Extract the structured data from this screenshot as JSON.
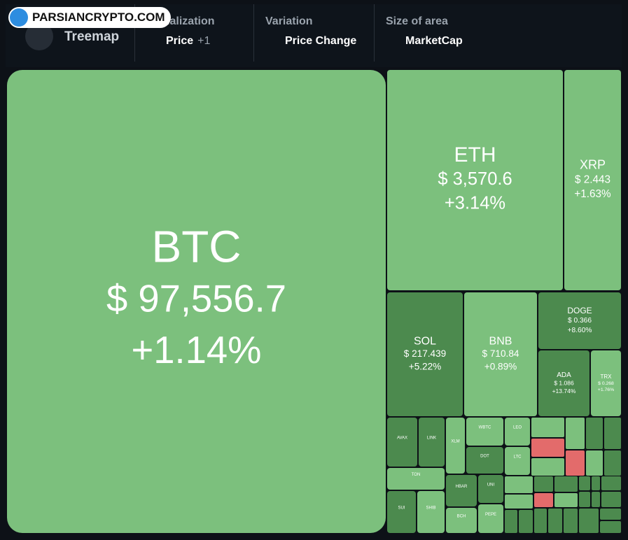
{
  "toolbar": {
    "logo_text": "PARSIANCRYPTO.COM",
    "view": "Treemap",
    "groups": [
      {
        "title": "Visualization",
        "value": "Price",
        "extra": "+1"
      },
      {
        "title": "Variation",
        "value": "Price Change"
      },
      {
        "title": "Size of area",
        "value": "MarketCap"
      }
    ]
  },
  "tiles": [
    {
      "name": "BTC",
      "price": "$ 97,556.7",
      "change": "+1.14%"
    },
    {
      "name": "ETH",
      "price": "$ 3,570.6",
      "change": "+3.14%"
    },
    {
      "name": "XRP",
      "price": "$ 2.443",
      "change": "+1.63%"
    },
    {
      "name": "SOL",
      "price": "$ 217.439",
      "change": "+5.22%"
    },
    {
      "name": "BNB",
      "price": "$ 710.84",
      "change": "+0.89%"
    },
    {
      "name": "DOGE",
      "price": "$ 0.366",
      "change": "+8.60%"
    },
    {
      "name": "ADA",
      "price": "$ 1.086",
      "change": "+13.74%"
    },
    {
      "name": "TRX",
      "price": "$ 0.268",
      "change": "+1.76%"
    },
    {
      "name": "AVAX"
    },
    {
      "name": "LINK"
    },
    {
      "name": "XLM"
    },
    {
      "name": "WBTC"
    },
    {
      "name": "LEO"
    },
    {
      "name": "DOT"
    },
    {
      "name": "LTC"
    },
    {
      "name": "TON"
    },
    {
      "name": "HBAR"
    },
    {
      "name": "UNI"
    },
    {
      "name": "SUI"
    },
    {
      "name": "SHIB"
    },
    {
      "name": "BCH"
    },
    {
      "name": "PEPE"
    }
  ]
}
